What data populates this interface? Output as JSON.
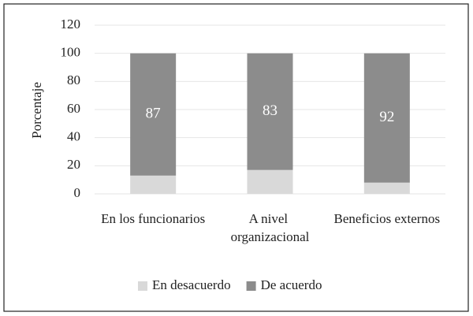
{
  "chart_data": {
    "type": "stacked_bar",
    "y_label": "Porcentaje",
    "categories": [
      "En los funcionarios",
      "A nivel organizacional",
      "Beneficios externos"
    ],
    "series": [
      {
        "name": "En desacuerdo",
        "color": "#d9d9d9",
        "values": [
          13,
          17,
          8
        ]
      },
      {
        "name": "De acuerdo",
        "color": "#8c8c8c",
        "values": [
          87,
          83,
          92
        ],
        "value_labels": [
          "87",
          "83",
          "92"
        ]
      }
    ],
    "ylim": [
      0,
      120
    ],
    "yticks": [
      0,
      20,
      40,
      60,
      80,
      100,
      120
    ],
    "grid": true,
    "legend": "bottom"
  }
}
